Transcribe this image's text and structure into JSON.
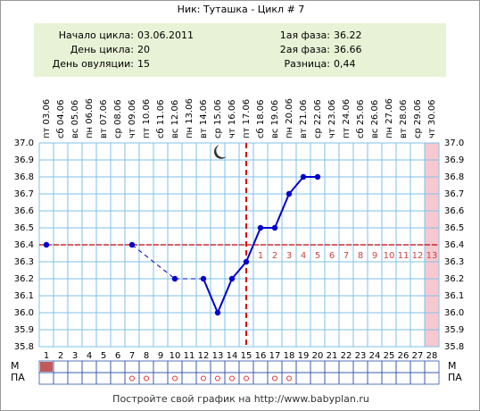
{
  "chart_data": {
    "type": "line",
    "title": "Ник: Туташка - Цикл # 7",
    "header_left": [
      {
        "label": "Начало цикла:",
        "value": "03.06.2011"
      },
      {
        "label": "День цикла:",
        "value": 20
      },
      {
        "label": "День овуляции:",
        "value": 15
      }
    ],
    "header_right": [
      {
        "label": "1ая фаза:",
        "value": 36.22
      },
      {
        "label": "2ая фаза:",
        "value": 36.66
      },
      {
        "label": "Разница:",
        "value": "0,44"
      }
    ],
    "categories": [
      "пт 03.06",
      "сб 04.06",
      "вс 05.06",
      "пн 06.06",
      "вт 07.06",
      "ср 08.06",
      "чт 09.06",
      "пт 10.06",
      "сб 11.06",
      "вс 12.06",
      "пн 13.06",
      "вт 14.06",
      "ср 15.06",
      "чт 16.06",
      "пт 17.06",
      "сб 18.06",
      "вс 19.06",
      "пн 20.06",
      "вт 21.06",
      "ср 22.06",
      "чт 23.06",
      "пт 24.06",
      "сб 25.06",
      "вс 26.06",
      "пн 27.06",
      "вт 28.06",
      "ср 29.06",
      "чт 30.06"
    ],
    "x": [
      1,
      2,
      3,
      4,
      5,
      6,
      7,
      8,
      9,
      10,
      11,
      12,
      13,
      14,
      15,
      16,
      17,
      18,
      19,
      20,
      21,
      22,
      23,
      24,
      25,
      26,
      27,
      28
    ],
    "values": [
      36.4,
      null,
      null,
      null,
      null,
      null,
      36.4,
      null,
      null,
      36.2,
      null,
      36.2,
      36.0,
      36.2,
      36.3,
      36.5,
      36.5,
      36.7,
      36.8,
      36.8,
      null,
      null,
      null,
      null,
      null,
      null,
      null,
      null
    ],
    "color": "#0000cc",
    "ylim": [
      35.8,
      37.0
    ],
    "yticks": [
      {
        "value": 35.8,
        "label": "35.8"
      },
      35.9,
      {
        "value": 36,
        "label": "36.0"
      },
      36.1,
      36.2,
      36.3,
      36.4,
      36.5,
      36.6,
      36.7,
      36.8,
      36.9,
      {
        "value": 37,
        "label": "37.0"
      }
    ],
    "grid": true,
    "coverline": 36.4,
    "ovulation_day": 15,
    "luteal_days": [
      1,
      2,
      3,
      4,
      5,
      6,
      7,
      8,
      9,
      10,
      11,
      12,
      13
    ],
    "highlight_days": [
      28
    ],
    "rows": [
      {
        "label": "М",
        "days": [
          1
        ]
      },
      {
        "label": "ПА",
        "days": [
          7,
          8,
          10,
          12,
          13,
          14,
          15,
          17,
          18
        ]
      }
    ],
    "footer": "Постройте свой график на http://www.babyplan.ru"
  }
}
